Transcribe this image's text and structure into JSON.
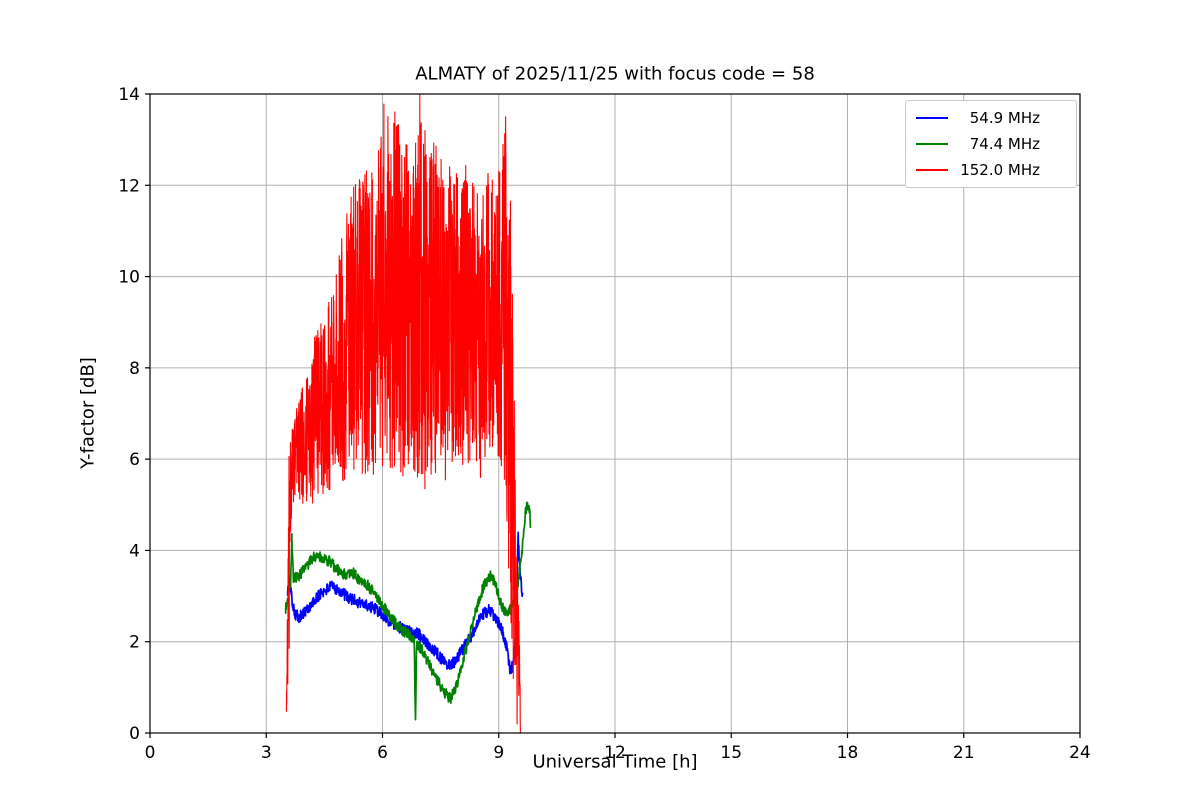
{
  "figure": {
    "background": "#ffffff"
  },
  "chart_data": {
    "type": "line",
    "title": "ALMATY of 2025/11/25 with focus code = 58",
    "xlabel": "Universal Time [h]",
    "ylabel": "Y-factor [dB]",
    "xlim": [
      0,
      24
    ],
    "ylim": [
      0,
      14
    ],
    "xticks": [
      0,
      3,
      6,
      9,
      12,
      15,
      18,
      21,
      24
    ],
    "yticks": [
      0,
      2,
      4,
      6,
      8,
      10,
      12,
      14
    ],
    "grid": true,
    "grid_color": "#b0b0b0",
    "frame_color": "#000000",
    "legend": {
      "position": "upper right",
      "entries": [
        "54.9 MHz",
        "74.4 MHz",
        "152.0 MHz"
      ]
    },
    "series": [
      {
        "name": "54.9 MHz",
        "color": "#0000ff",
        "kind": "noisy-line",
        "noise": 0.13,
        "seed": 101,
        "points": [
          [
            3.55,
            3.1
          ],
          [
            3.6,
            3.35
          ],
          [
            3.67,
            2.9
          ],
          [
            3.75,
            2.6
          ],
          [
            3.85,
            2.55
          ],
          [
            3.95,
            2.6
          ],
          [
            4.1,
            2.75
          ],
          [
            4.25,
            2.9
          ],
          [
            4.4,
            3.05
          ],
          [
            4.55,
            3.15
          ],
          [
            4.7,
            3.2
          ],
          [
            4.85,
            3.15
          ],
          [
            5.0,
            3.05
          ],
          [
            5.15,
            2.95
          ],
          [
            5.3,
            2.9
          ],
          [
            5.45,
            2.85
          ],
          [
            5.6,
            2.8
          ],
          [
            5.75,
            2.75
          ],
          [
            5.9,
            2.65
          ],
          [
            6.05,
            2.55
          ],
          [
            6.2,
            2.45
          ],
          [
            6.35,
            2.35
          ],
          [
            6.5,
            2.3
          ],
          [
            6.65,
            2.25
          ],
          [
            6.8,
            2.2
          ],
          [
            6.95,
            2.15
          ],
          [
            7.1,
            2.0
          ],
          [
            7.25,
            1.9
          ],
          [
            7.4,
            1.75
          ],
          [
            7.55,
            1.6
          ],
          [
            7.7,
            1.5
          ],
          [
            7.85,
            1.55
          ],
          [
            8.0,
            1.75
          ],
          [
            8.15,
            1.95
          ],
          [
            8.3,
            2.15
          ],
          [
            8.45,
            2.4
          ],
          [
            8.6,
            2.6
          ],
          [
            8.75,
            2.7
          ],
          [
            8.9,
            2.55
          ],
          [
            9.0,
            2.4
          ],
          [
            9.1,
            2.2
          ],
          [
            9.2,
            1.9
          ],
          [
            9.3,
            1.35
          ],
          [
            9.38,
            1.5
          ],
          [
            9.45,
            2.5
          ],
          [
            9.5,
            4.3
          ],
          [
            9.55,
            3.5
          ],
          [
            9.62,
            2.9
          ]
        ]
      },
      {
        "name": "74.4 MHz",
        "color": "#008000",
        "kind": "noisy-line",
        "noise": 0.12,
        "seed": 202,
        "points": [
          [
            3.5,
            2.7
          ],
          [
            3.58,
            3.1
          ],
          [
            3.63,
            3.3
          ],
          [
            3.66,
            4.3
          ],
          [
            3.7,
            3.4
          ],
          [
            3.8,
            3.4
          ],
          [
            3.9,
            3.5
          ],
          [
            4.0,
            3.6
          ],
          [
            4.1,
            3.7
          ],
          [
            4.2,
            3.85
          ],
          [
            4.35,
            3.9
          ],
          [
            4.5,
            3.8
          ],
          [
            4.65,
            3.75
          ],
          [
            4.8,
            3.6
          ],
          [
            4.95,
            3.5
          ],
          [
            5.1,
            3.45
          ],
          [
            5.25,
            3.5
          ],
          [
            5.4,
            3.35
          ],
          [
            5.55,
            3.3
          ],
          [
            5.7,
            3.15
          ],
          [
            5.85,
            3.0
          ],
          [
            6.0,
            2.8
          ],
          [
            6.15,
            2.6
          ],
          [
            6.3,
            2.45
          ],
          [
            6.45,
            2.3
          ],
          [
            6.6,
            2.2
          ],
          [
            6.75,
            2.1
          ],
          [
            6.82,
            2.0
          ],
          [
            6.85,
            0.2
          ],
          [
            6.88,
            1.95
          ],
          [
            7.0,
            1.85
          ],
          [
            7.15,
            1.6
          ],
          [
            7.3,
            1.35
          ],
          [
            7.45,
            1.1
          ],
          [
            7.6,
            0.9
          ],
          [
            7.75,
            0.75
          ],
          [
            7.9,
            1.0
          ],
          [
            8.05,
            1.5
          ],
          [
            8.2,
            2.0
          ],
          [
            8.35,
            2.5
          ],
          [
            8.5,
            2.95
          ],
          [
            8.65,
            3.3
          ],
          [
            8.8,
            3.45
          ],
          [
            8.9,
            3.3
          ],
          [
            9.0,
            3.0
          ],
          [
            9.1,
            2.75
          ],
          [
            9.2,
            2.6
          ],
          [
            9.3,
            2.7
          ],
          [
            9.4,
            2.9
          ],
          [
            9.5,
            3.3
          ],
          [
            9.6,
            4.0
          ],
          [
            9.7,
            4.9
          ],
          [
            9.78,
            5.0
          ],
          [
            9.82,
            4.6
          ]
        ]
      },
      {
        "name": "152.0 MHz",
        "color": "#ff0000",
        "kind": "noisy-band",
        "seed": 303,
        "envelope": [
          [
            3.52,
            0.0,
            0.5
          ],
          [
            3.56,
            0.1,
            6.3
          ],
          [
            3.65,
            4.8,
            6.6
          ],
          [
            3.8,
            5.2,
            7.2
          ],
          [
            4.0,
            4.9,
            7.8
          ],
          [
            4.2,
            5.0,
            8.6
          ],
          [
            4.4,
            5.2,
            9.0
          ],
          [
            4.6,
            5.3,
            9.4
          ],
          [
            4.8,
            5.4,
            10.2
          ],
          [
            5.0,
            5.5,
            11.2
          ],
          [
            5.2,
            5.6,
            11.9
          ],
          [
            5.4,
            5.7,
            12.2
          ],
          [
            5.6,
            5.5,
            12.5
          ],
          [
            5.8,
            5.6,
            12.2
          ],
          [
            6.0,
            5.8,
            13.8
          ],
          [
            6.1,
            5.9,
            14.2
          ],
          [
            6.2,
            5.7,
            12.8
          ],
          [
            6.35,
            5.8,
            14.0
          ],
          [
            6.5,
            5.6,
            12.9
          ],
          [
            6.65,
            5.7,
            13.5
          ],
          [
            6.8,
            5.5,
            12.8
          ],
          [
            6.95,
            5.6,
            14.1
          ],
          [
            7.1,
            5.3,
            13.2
          ],
          [
            7.25,
            5.6,
            12.9
          ],
          [
            7.4,
            5.5,
            13.0
          ],
          [
            7.55,
            5.2,
            12.6
          ],
          [
            7.7,
            5.6,
            12.4
          ],
          [
            7.85,
            5.8,
            12.6
          ],
          [
            8.0,
            5.7,
            12.2
          ],
          [
            8.15,
            5.9,
            12.5
          ],
          [
            8.3,
            5.6,
            12.1
          ],
          [
            8.45,
            5.3,
            12.0
          ],
          [
            8.6,
            5.7,
            12.2
          ],
          [
            8.75,
            5.9,
            12.4
          ],
          [
            8.9,
            6.0,
            12.1
          ],
          [
            9.05,
            5.8,
            12.6
          ],
          [
            9.15,
            5.5,
            13.5
          ],
          [
            9.22,
            4.5,
            14.2
          ],
          [
            9.3,
            1.5,
            12.0
          ],
          [
            9.38,
            0.2,
            9.0
          ],
          [
            9.45,
            0.05,
            4.5
          ],
          [
            9.52,
            0.0,
            2.9
          ],
          [
            9.56,
            0.0,
            0.6
          ]
        ]
      }
    ]
  }
}
